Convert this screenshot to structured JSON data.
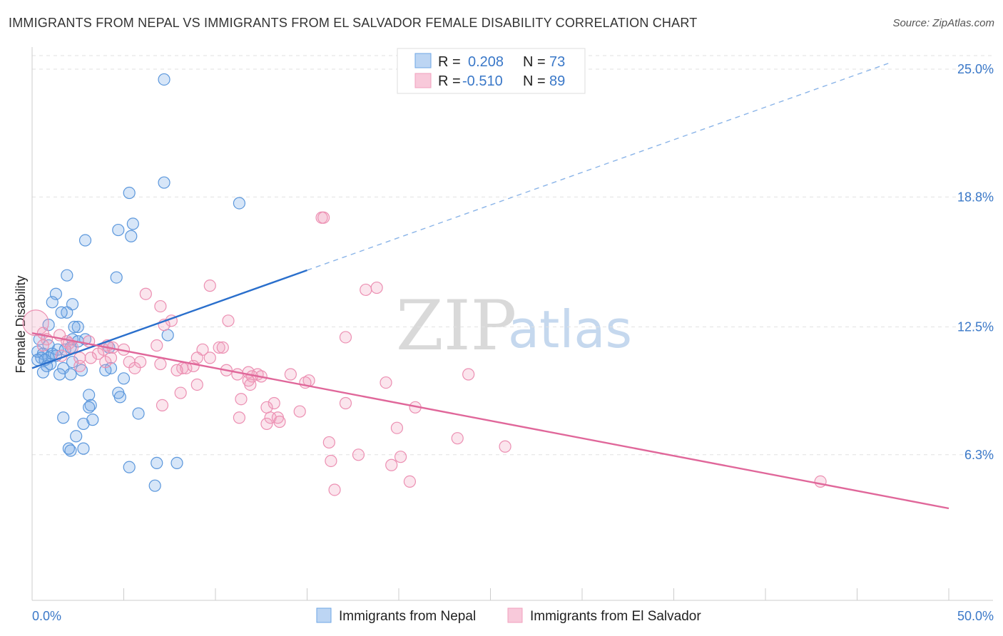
{
  "header": {
    "title": "IMMIGRANTS FROM NEPAL VS IMMIGRANTS FROM EL SALVADOR FEMALE DISABILITY CORRELATION CHART",
    "source": "Source: ZipAtlas.com"
  },
  "watermark": {
    "zip": "ZIP",
    "atlas": "atlas"
  },
  "stats_legend": {
    "rows": [
      {
        "r_label": "R =",
        "r_value": "0.208",
        "n_label": "N =",
        "n_value": "73"
      },
      {
        "r_label": "R =",
        "r_value": "-0.510",
        "n_label": "N =",
        "n_value": "89"
      }
    ]
  },
  "chart_data": {
    "type": "scatter",
    "title": "IMMIGRANTS FROM NEPAL VS IMMIGRANTS FROM EL SALVADOR FEMALE DISABILITY CORRELATION CHART",
    "xlabel": "",
    "ylabel": "Female Disability",
    "xlim": [
      0,
      50
    ],
    "ylim": [
      0,
      26.4
    ],
    "x_tick_labels": [
      "0.0%",
      "50.0%"
    ],
    "y_ticks": [
      6.3,
      12.5,
      18.8,
      25.0
    ],
    "y_tick_labels": [
      "6.3%",
      "12.5%",
      "18.8%",
      "25.0%"
    ],
    "grid": true,
    "legend_position": "bottom",
    "colors": {
      "nepal": "#6ea6e6",
      "nepal_line": "#2a6fcc",
      "elsalvador": "#f1a0bd",
      "elsalvador_line": "#e0679a"
    },
    "series": [
      {
        "name": "Immigrants from Nepal",
        "r": 0.208,
        "n": 73,
        "trend": {
          "x0": 0,
          "y0": 10.5,
          "x_solid_end": 15,
          "x_dash_end": 46.7,
          "slope": 0.3165
        },
        "points": [
          [
            7.2,
            24.5
          ],
          [
            7.2,
            19.5
          ],
          [
            5.3,
            19.0
          ],
          [
            11.3,
            18.5
          ],
          [
            5.5,
            17.5
          ],
          [
            4.7,
            17.2
          ],
          [
            5.4,
            16.9
          ],
          [
            2.9,
            16.7
          ],
          [
            4.6,
            14.9
          ],
          [
            1.9,
            15.0
          ],
          [
            1.3,
            14.1
          ],
          [
            1.1,
            13.7
          ],
          [
            2.2,
            13.6
          ],
          [
            1.9,
            13.2
          ],
          [
            1.6,
            13.2
          ],
          [
            0.9,
            12.6
          ],
          [
            2.5,
            12.5
          ],
          [
            2.3,
            12.5
          ],
          [
            7.4,
            12.1
          ],
          [
            2.2,
            11.9
          ],
          [
            2.9,
            11.9
          ],
          [
            2.5,
            11.8
          ],
          [
            0.4,
            11.9
          ],
          [
            0.9,
            11.6
          ],
          [
            1.4,
            11.4
          ],
          [
            1.8,
            11.4
          ],
          [
            2.1,
            11.5
          ],
          [
            4.2,
            11.5
          ],
          [
            0.3,
            11.3
          ],
          [
            0.6,
            11.2
          ],
          [
            1.1,
            11.2
          ],
          [
            1.3,
            11.1
          ],
          [
            0.9,
            11.0
          ],
          [
            0.5,
            11.0
          ],
          [
            0.7,
            10.9
          ],
          [
            0.3,
            10.9
          ],
          [
            1.0,
            10.7
          ],
          [
            0.8,
            10.6
          ],
          [
            2.2,
            10.8
          ],
          [
            1.7,
            10.5
          ],
          [
            2.7,
            10.4
          ],
          [
            4.3,
            10.5
          ],
          [
            4.0,
            10.4
          ],
          [
            0.6,
            10.3
          ],
          [
            1.5,
            10.2
          ],
          [
            2.1,
            10.2
          ],
          [
            5.0,
            10.0
          ],
          [
            4.7,
            9.3
          ],
          [
            4.8,
            9.1
          ],
          [
            3.1,
            9.2
          ],
          [
            3.2,
            8.7
          ],
          [
            3.1,
            8.6
          ],
          [
            5.8,
            8.3
          ],
          [
            1.7,
            8.1
          ],
          [
            3.3,
            8.0
          ],
          [
            2.8,
            7.8
          ],
          [
            2.4,
            7.2
          ],
          [
            2.0,
            6.6
          ],
          [
            2.8,
            6.6
          ],
          [
            2.1,
            6.5
          ],
          [
            6.8,
            5.9
          ],
          [
            7.9,
            5.9
          ],
          [
            5.3,
            5.7
          ],
          [
            6.7,
            4.8
          ]
        ]
      },
      {
        "name": "Immigrants from El Salvador",
        "r": -0.51,
        "n": 89,
        "trend": {
          "x0": 0,
          "y0": 12.2,
          "x1": 50,
          "y1": 3.7
        },
        "points": [
          [
            0.2,
            12.7
          ],
          [
            15.8,
            17.8
          ],
          [
            15.9,
            17.8
          ],
          [
            9.7,
            14.5
          ],
          [
            18.8,
            14.4
          ],
          [
            18.2,
            14.3
          ],
          [
            6.2,
            14.1
          ],
          [
            7.0,
            13.5
          ],
          [
            10.7,
            12.8
          ],
          [
            7.6,
            12.8
          ],
          [
            7.2,
            12.6
          ],
          [
            0.6,
            12.2
          ],
          [
            1.5,
            12.1
          ],
          [
            17.1,
            12.0
          ],
          [
            0.8,
            11.9
          ],
          [
            1.9,
            11.8
          ],
          [
            2.0,
            11.7
          ],
          [
            3.1,
            11.8
          ],
          [
            0.6,
            11.6
          ],
          [
            4.1,
            11.6
          ],
          [
            4.4,
            11.5
          ],
          [
            6.8,
            11.6
          ],
          [
            2.2,
            11.5
          ],
          [
            10.2,
            11.5
          ],
          [
            10.4,
            11.5
          ],
          [
            3.9,
            11.4
          ],
          [
            5.0,
            11.4
          ],
          [
            9.3,
            11.4
          ],
          [
            3.6,
            11.2
          ],
          [
            1.6,
            11.1
          ],
          [
            2.6,
            11.0
          ],
          [
            3.2,
            11.0
          ],
          [
            4.3,
            11.0
          ],
          [
            9.7,
            11.0
          ],
          [
            9.0,
            11.0
          ],
          [
            4.0,
            10.8
          ],
          [
            5.3,
            10.8
          ],
          [
            5.9,
            10.8
          ],
          [
            7.0,
            10.7
          ],
          [
            8.2,
            10.5
          ],
          [
            8.4,
            10.5
          ],
          [
            8.8,
            10.6
          ],
          [
            5.6,
            10.5
          ],
          [
            2.6,
            10.6
          ],
          [
            7.9,
            10.4
          ],
          [
            10.6,
            10.4
          ],
          [
            11.8,
            10.3
          ],
          [
            14.1,
            10.2
          ],
          [
            23.8,
            10.2
          ],
          [
            12.3,
            10.2
          ],
          [
            12.0,
            10.1
          ],
          [
            11.2,
            10.2
          ],
          [
            12.5,
            10.1
          ],
          [
            11.8,
            9.9
          ],
          [
            15.1,
            9.9
          ],
          [
            14.9,
            9.8
          ],
          [
            19.3,
            9.8
          ],
          [
            9.0,
            9.7
          ],
          [
            11.9,
            9.7
          ],
          [
            8.1,
            9.3
          ],
          [
            11.4,
            9.0
          ],
          [
            17.1,
            8.8
          ],
          [
            7.1,
            8.7
          ],
          [
            13.2,
            8.8
          ],
          [
            12.8,
            8.6
          ],
          [
            20.9,
            8.6
          ],
          [
            14.6,
            8.4
          ],
          [
            11.3,
            8.1
          ],
          [
            13.0,
            8.1
          ],
          [
            13.4,
            8.1
          ],
          [
            12.8,
            7.8
          ],
          [
            13.5,
            7.9
          ],
          [
            19.9,
            7.6
          ],
          [
            23.2,
            7.1
          ],
          [
            16.2,
            6.9
          ],
          [
            25.8,
            6.7
          ],
          [
            17.8,
            6.3
          ],
          [
            20.1,
            6.2
          ],
          [
            16.3,
            6.0
          ],
          [
            19.6,
            5.8
          ],
          [
            20.6,
            5.0
          ],
          [
            16.5,
            4.6
          ],
          [
            43.0,
            5.0
          ]
        ]
      }
    ]
  },
  "bottom_legend": {
    "items": [
      {
        "label": "Immigrants from Nepal"
      },
      {
        "label": "Immigrants from El Salvador"
      }
    ]
  }
}
